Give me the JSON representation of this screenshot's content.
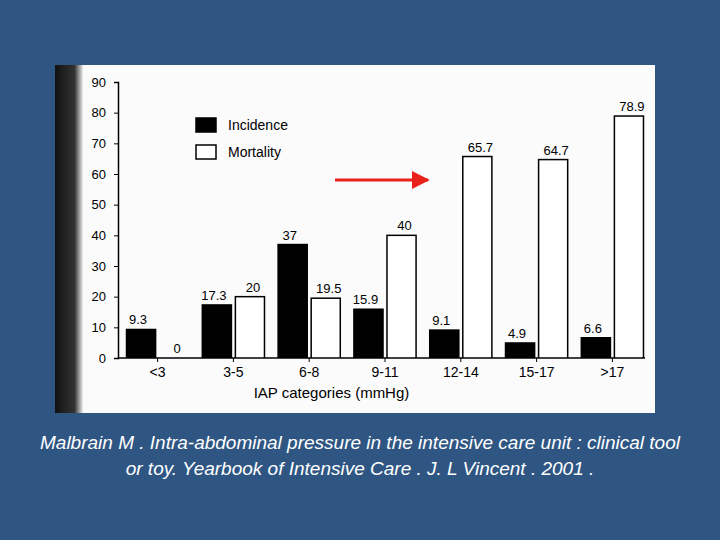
{
  "chart_data": {
    "type": "bar",
    "x_label": "IAP categories (mmHg)",
    "categories": [
      "<3",
      "3-5",
      "6-8",
      "9-11",
      "12-14",
      "15-17",
      ">17"
    ],
    "series": [
      {
        "name": "Incidence",
        "color": "#000000",
        "values": [
          9.3,
          17.3,
          37,
          15.9,
          9.1,
          4.9,
          6.6
        ]
      },
      {
        "name": "Mortality",
        "color": "#ffffff",
        "values": [
          0,
          20,
          19.5,
          40,
          65.7,
          64.7,
          78.9
        ]
      }
    ],
    "ylim": [
      0,
      90
    ],
    "yticks": [
      0,
      10,
      20,
      30,
      40,
      50,
      60,
      70,
      80,
      90
    ],
    "data_labels": true,
    "legend": "upper left",
    "annotations": [
      "Malbrain M . Intra-abdominal pressure in the intensive care unit : clinical tool or toy. Yearbook of Intensive Care . J. L Vincent . 2001 ."
    ]
  }
}
